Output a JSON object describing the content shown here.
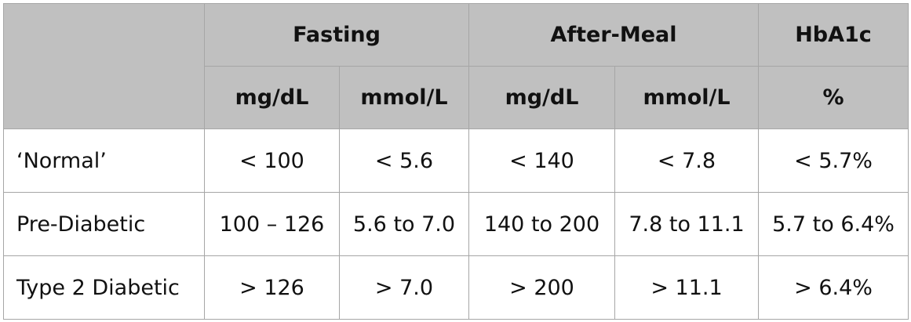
{
  "table": {
    "header": {
      "corner": "",
      "groups": {
        "fasting": "Fasting",
        "after_meal": "After-Meal",
        "hba1c": "HbA1c"
      },
      "units": {
        "fasting_mgdl": "mg/dL",
        "fasting_mmol": "mmol/L",
        "after_meal_mgdl": "mg/dL",
        "after_meal_mmol": "mmol/L",
        "hba1c_pct": "%"
      }
    },
    "rows": [
      {
        "label": "‘Normal’",
        "fasting_mgdl": "< 100",
        "fasting_mmol": "< 5.6",
        "after_meal_mgdl": "< 140",
        "after_meal_mmol": "< 7.8",
        "hba1c": "< 5.7%"
      },
      {
        "label": "Pre-Diabetic",
        "fasting_mgdl": "100 – 126",
        "fasting_mmol": "5.6 to 7.0",
        "after_meal_mgdl": "140 to 200",
        "after_meal_mmol": "7.8 to 11.1",
        "hba1c": "5.7 to 6.4%"
      },
      {
        "label": "Type 2 Diabetic",
        "fasting_mgdl": "> 126",
        "fasting_mmol": "> 7.0",
        "after_meal_mgdl": "> 200",
        "after_meal_mmol": "> 11.1",
        "hba1c": "> 6.4%"
      }
    ],
    "colors": {
      "header_background": "#c0c0c0",
      "body_background": "#ffffff",
      "border": "#a6a6a6",
      "text": "#111111"
    }
  }
}
